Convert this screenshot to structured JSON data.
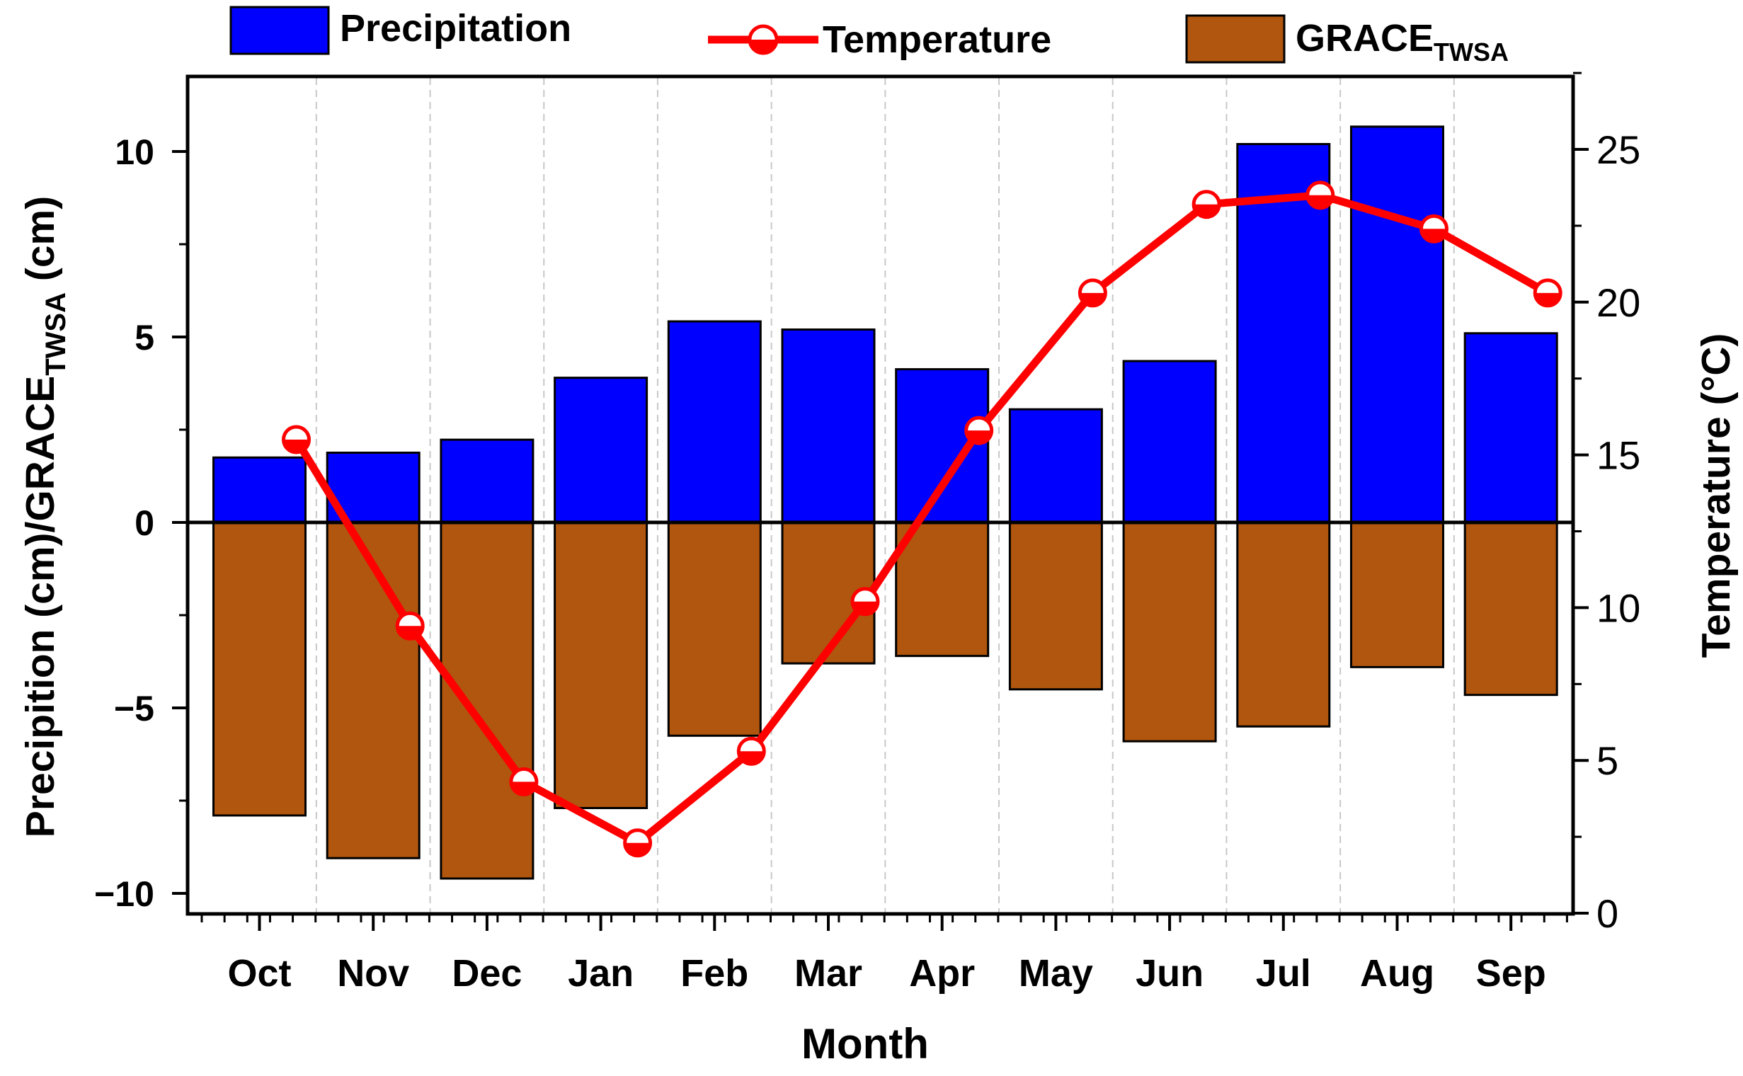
{
  "chart_data": {
    "type": "bar",
    "categories": [
      "Oct",
      "Nov",
      "Dec",
      "Jan",
      "Feb",
      "Mar",
      "Apr",
      "May",
      "Jun",
      "Jul",
      "Aug",
      "Sep"
    ],
    "xlabel": "Month",
    "ylabel": {
      "main": "Precipition (cm)/GRACE",
      "sub": "TWSA",
      "tail": " (cm)"
    },
    "y2label": "Temperature (°C)",
    "ylim": [
      -10.5,
      12
    ],
    "yticks": [
      10,
      5,
      0,
      -5,
      -10
    ],
    "y_tick_labels": [
      "10",
      "5",
      "0",
      "−5",
      "−10"
    ],
    "y2lim": [
      0,
      27.5
    ],
    "y2ticks": [
      0,
      5,
      10,
      15,
      20,
      25
    ],
    "y2_tick_labels": [
      "0",
      "5",
      "10",
      "15",
      "20",
      "25"
    ],
    "legend_position": "top",
    "grid": {
      "x": true,
      "y": false
    },
    "series": [
      {
        "name": "Precipitation",
        "type": "bar",
        "axis": "left",
        "color": "#0000ff",
        "values": [
          1.75,
          1.88,
          2.23,
          3.9,
          5.42,
          5.2,
          4.13,
          3.05,
          4.35,
          10.2,
          10.67,
          5.1
        ]
      },
      {
        "name": {
          "main": "GRACE",
          "sub": "TWSA"
        },
        "type": "bar",
        "axis": "left",
        "color": "#b0560e",
        "values": [
          -7.9,
          -9.05,
          -9.6,
          -7.7,
          -5.75,
          -3.8,
          -3.6,
          -4.5,
          -5.9,
          -5.5,
          -3.9,
          -4.65
        ]
      },
      {
        "name": "Temperature",
        "type": "line",
        "axis": "right",
        "color": "#ff0000",
        "values": [
          15.5,
          9.4,
          4.3,
          2.3,
          5.3,
          10.2,
          15.8,
          20.3,
          23.2,
          23.5,
          22.4,
          20.3
        ]
      }
    ]
  }
}
